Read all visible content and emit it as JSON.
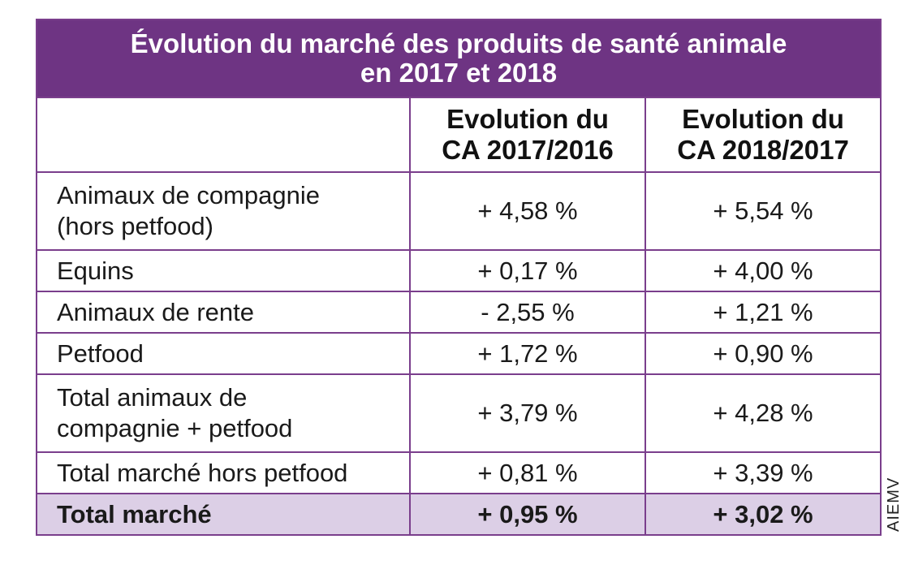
{
  "table": {
    "title_line1": "Évolution du marché des produits de santé animale",
    "title_line2": "en 2017 et 2018",
    "header": {
      "col1_line1": "Evolution du",
      "col1_line2": "CA 2017/2016",
      "col2_line1": "Evolution du",
      "col2_line2": "CA 2018/2017"
    },
    "rows": [
      {
        "label_line1": "Animaux de compagnie",
        "label_line2": "(hors petfood)",
        "v2017": "+ 4,58 %",
        "v2018": "+ 5,54 %"
      },
      {
        "label_line1": "Equins",
        "v2017": "+ 0,17 %",
        "v2018": "+ 4,00 %"
      },
      {
        "label_line1": "Animaux de rente",
        "v2017": "- 2,55 %",
        "v2018": "+ 1,21 %"
      },
      {
        "label_line1": "Petfood",
        "v2017": "+ 1,72 %",
        "v2018": "+ 0,90 %"
      },
      {
        "label_line1": "Total animaux de",
        "label_line2": "compagnie + petfood",
        "v2017": "+ 3,79 %",
        "v2018": "+ 4,28 %"
      },
      {
        "label_line1": "Total marché hors petfood",
        "v2017": "+ 0,81 %",
        "v2018": "+ 3,39 %"
      }
    ],
    "total": {
      "label": "Total marché",
      "v2017": "+ 0,95 %",
      "v2018": "+ 3,02 %"
    }
  },
  "source": "AIEMV",
  "colors": {
    "title_background": "#6e3483",
    "border": "#7a3e8c",
    "total_row_background": "#dccfe6"
  }
}
